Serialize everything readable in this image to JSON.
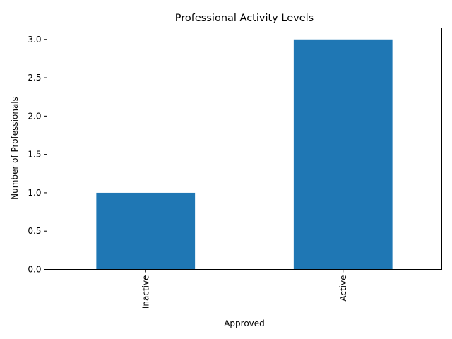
{
  "chart_data": {
    "type": "bar",
    "title": "Professional Activity Levels",
    "xlabel": "Approved",
    "ylabel": "Number of Professionals",
    "categories": [
      "Inactive",
      "Active"
    ],
    "values": [
      1,
      3
    ],
    "ylim": [
      0,
      3.15
    ],
    "yticks": [
      0.0,
      0.5,
      1.0,
      1.5,
      2.0,
      2.5,
      3.0
    ],
    "ytick_labels": [
      "0.0",
      "0.5",
      "1.0",
      "1.5",
      "2.0",
      "2.5",
      "3.0"
    ],
    "bar_color": "#1f77b4",
    "grid": false,
    "legend": "none"
  }
}
